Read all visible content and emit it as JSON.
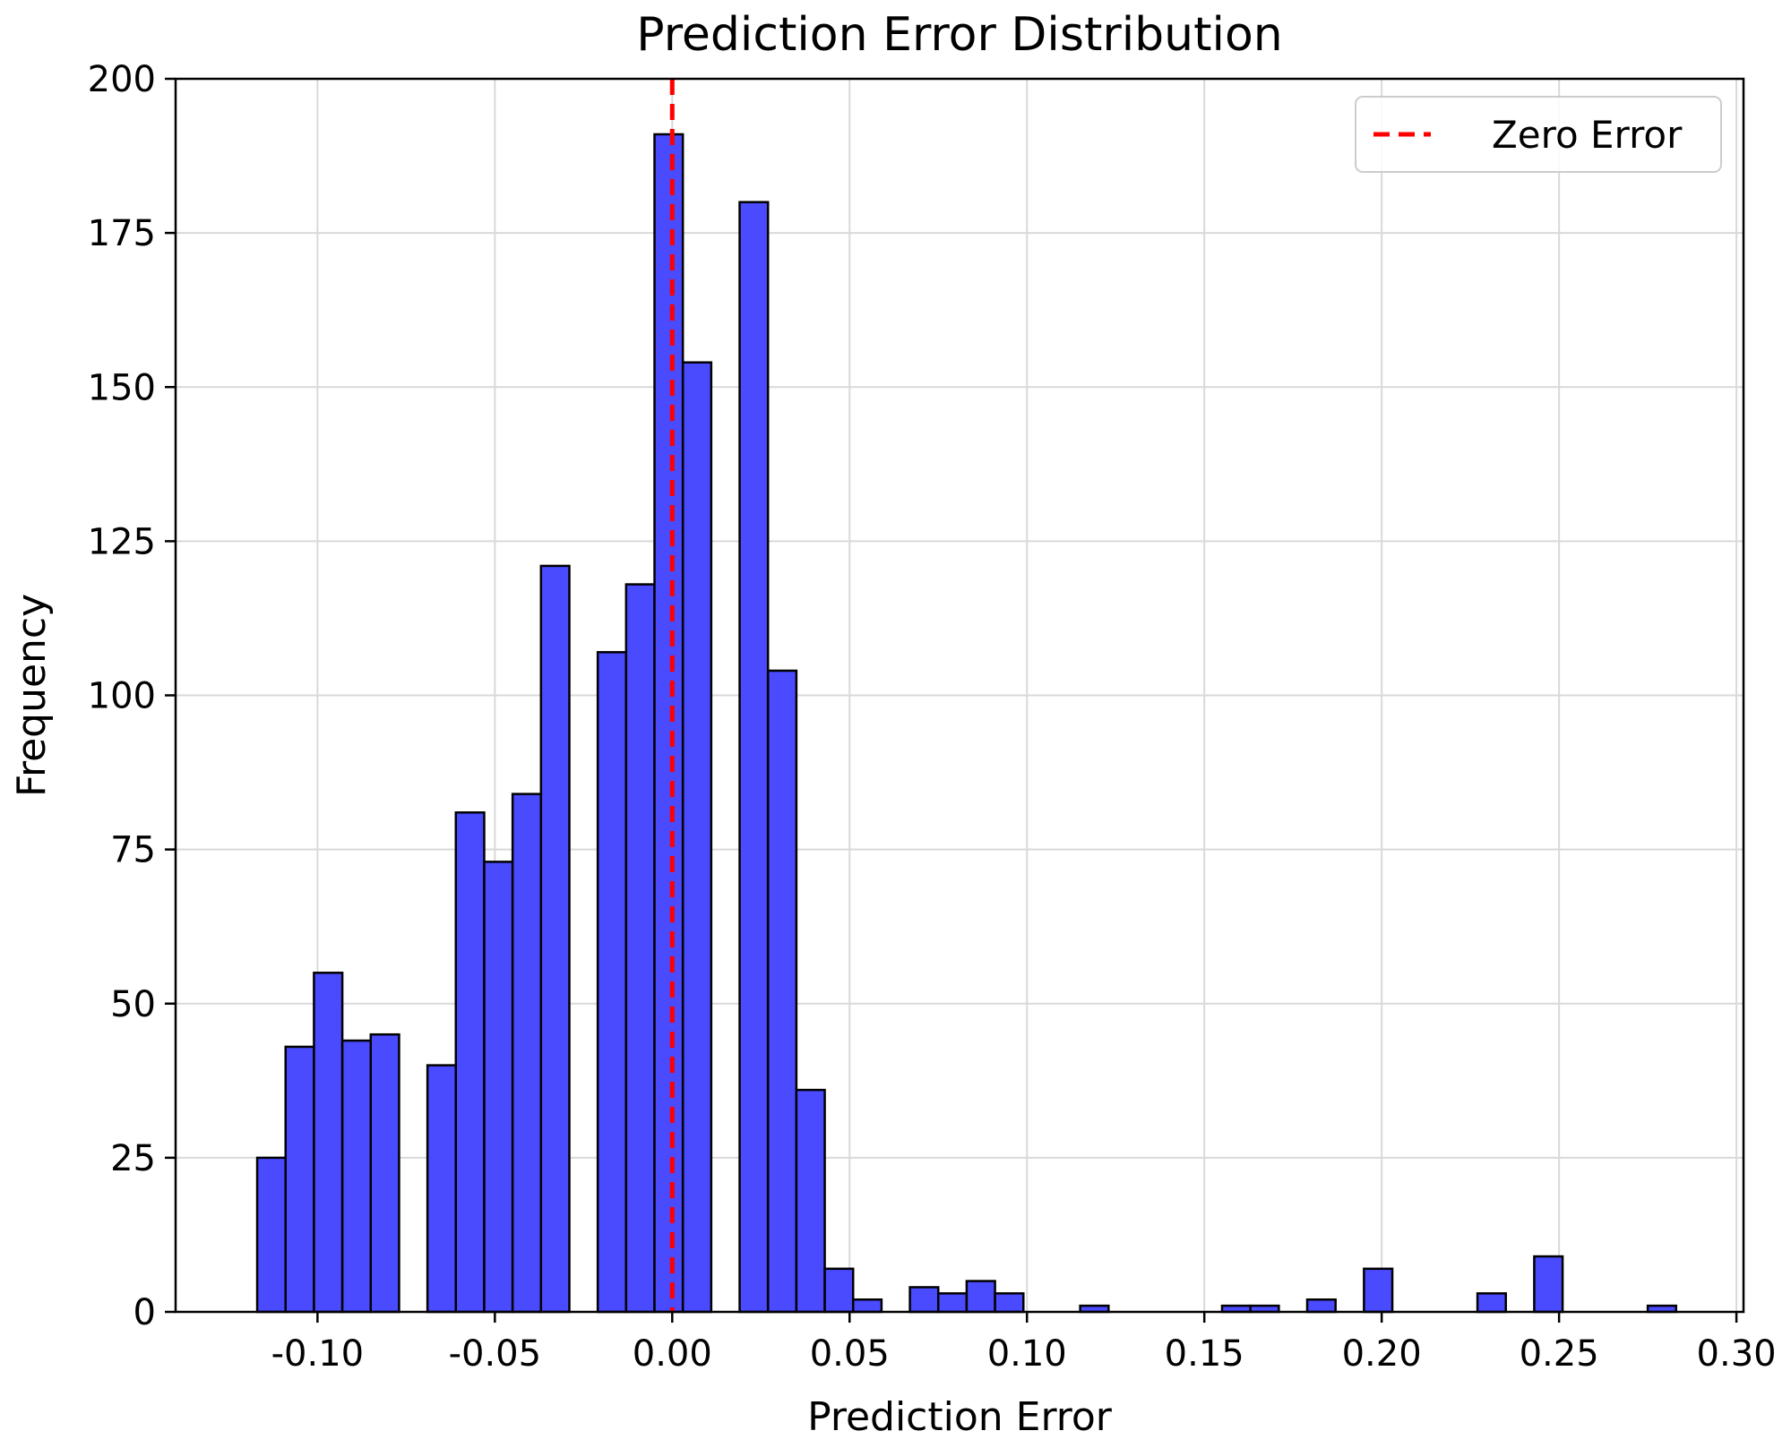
{
  "chart_data": {
    "type": "bar",
    "title": "Prediction Error Distribution",
    "xlabel": "Prediction Error",
    "ylabel": "Frequency",
    "xlim": [
      -0.14,
      0.302
    ],
    "ylim": [
      0,
      200
    ],
    "x_ticks": [
      -0.1,
      -0.05,
      0.0,
      0.05,
      0.1,
      0.15,
      0.2,
      0.25,
      0.3
    ],
    "x_tick_labels": [
      "-0.10",
      "-0.05",
      "0.00",
      "0.05",
      "0.10",
      "0.15",
      "0.20",
      "0.25",
      "0.30"
    ],
    "y_ticks": [
      0,
      25,
      50,
      75,
      100,
      125,
      150,
      175,
      200
    ],
    "y_tick_labels": [
      "0",
      "25",
      "50",
      "75",
      "100",
      "125",
      "150",
      "175",
      "200"
    ],
    "grid": true,
    "bar_color": "#4a4aff",
    "bin_start": -0.117,
    "bin_width": 0.008,
    "values": [
      25,
      43,
      55,
      44,
      45,
      0,
      40,
      81,
      73,
      84,
      121,
      0,
      107,
      118,
      191,
      154,
      0,
      180,
      104,
      36,
      7,
      2,
      0,
      4,
      3,
      5,
      3,
      0,
      0,
      1,
      0,
      0,
      0,
      0,
      1,
      1,
      0,
      2,
      0,
      7,
      0,
      0,
      0,
      3,
      0,
      9,
      0,
      0,
      0,
      1
    ],
    "reference_line": {
      "x": 0.0,
      "label": "Zero Error",
      "color": "#ff0000",
      "style": "dashed"
    },
    "legend": {
      "placement": "top-right",
      "entries": [
        "Zero Error"
      ]
    }
  }
}
